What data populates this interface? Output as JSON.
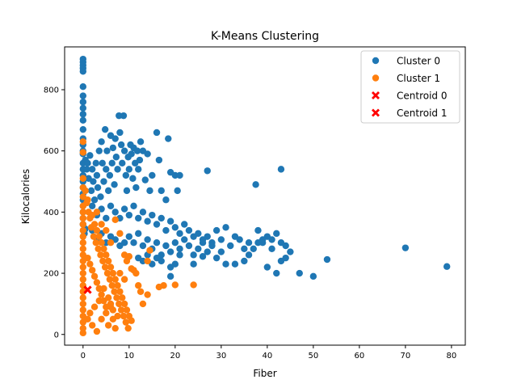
{
  "chart_data": {
    "type": "scatter",
    "title": "K-Means Clustering",
    "xlabel": "Fiber",
    "ylabel": "Kilocalories",
    "xlim": [
      -4,
      83
    ],
    "ylim": [
      -35,
      940
    ],
    "xticks": [
      0,
      10,
      20,
      30,
      40,
      50,
      60,
      70,
      80
    ],
    "yticks": [
      0,
      200,
      400,
      600,
      800
    ],
    "grid": false,
    "legend_position": "top-right",
    "series": [
      {
        "name": "Cluster 0",
        "color": "#1f77b4",
        "marker": "circle",
        "points": [
          [
            0,
            900
          ],
          [
            0,
            890
          ],
          [
            0,
            880
          ],
          [
            0,
            870
          ],
          [
            0,
            860
          ],
          [
            0,
            810
          ],
          [
            0,
            780
          ],
          [
            0,
            760
          ],
          [
            0,
            740
          ],
          [
            0,
            720
          ],
          [
            0,
            700
          ],
          [
            0,
            670
          ],
          [
            0,
            640
          ],
          [
            0,
            620
          ],
          [
            0,
            600
          ],
          [
            0,
            590
          ],
          [
            0,
            560
          ],
          [
            0,
            540
          ],
          [
            0,
            520
          ],
          [
            0,
            500
          ],
          [
            0,
            480
          ],
          [
            0,
            460
          ],
          [
            0,
            440
          ],
          [
            0,
            420
          ],
          [
            0,
            400
          ],
          [
            0,
            380
          ],
          [
            0,
            360
          ],
          [
            0.3,
            330
          ],
          [
            0.5,
            345
          ],
          [
            0.5,
            570
          ],
          [
            0.8,
            540
          ],
          [
            1,
            560
          ],
          [
            1.2,
            510
          ],
          [
            1.5,
            585
          ],
          [
            1.8,
            470
          ],
          [
            2,
            540
          ],
          [
            2.2,
            500
          ],
          [
            2.5,
            440
          ],
          [
            2.8,
            560
          ],
          [
            3,
            520
          ],
          [
            3.2,
            480
          ],
          [
            3.5,
            600
          ],
          [
            3.8,
            450
          ],
          [
            4,
            630
          ],
          [
            4.2,
            560
          ],
          [
            4.5,
            500
          ],
          [
            4.8,
            670
          ],
          [
            5,
            540
          ],
          [
            5.2,
            600
          ],
          [
            5.5,
            470
          ],
          [
            5.8,
            520
          ],
          [
            6,
            650
          ],
          [
            6.3,
            560
          ],
          [
            6.5,
            610
          ],
          [
            6.8,
            490
          ],
          [
            7,
            640
          ],
          [
            7.2,
            580
          ],
          [
            7.5,
            540
          ],
          [
            7.8,
            715
          ],
          [
            8,
            660
          ],
          [
            8.3,
            620
          ],
          [
            8.5,
            560
          ],
          [
            8.8,
            715
          ],
          [
            9,
            600
          ],
          [
            9.3,
            520
          ],
          [
            9.5,
            470
          ],
          [
            9.8,
            580
          ],
          [
            10,
            540
          ],
          [
            10.3,
            620
          ],
          [
            10.5,
            590
          ],
          [
            10.8,
            510
          ],
          [
            11,
            610
          ],
          [
            11.3,
            560
          ],
          [
            11.5,
            480
          ],
          [
            11.8,
            600
          ],
          [
            12,
            540
          ],
          [
            12.3,
            570
          ],
          [
            12.5,
            630
          ],
          [
            13,
            600
          ],
          [
            13.5,
            505
          ],
          [
            14,
            590
          ],
          [
            14.5,
            470
          ],
          [
            15,
            520
          ],
          [
            16,
            660
          ],
          [
            16.5,
            570
          ],
          [
            17,
            470
          ],
          [
            18,
            440
          ],
          [
            18.5,
            640
          ],
          [
            19,
            530
          ],
          [
            20,
            520
          ],
          [
            20.5,
            470
          ],
          [
            21,
            520
          ],
          [
            27,
            535
          ],
          [
            37.5,
            490
          ],
          [
            43,
            540
          ],
          [
            2,
            420
          ],
          [
            3,
            390
          ],
          [
            4,
            410
          ],
          [
            5,
            380
          ],
          [
            6,
            420
          ],
          [
            7,
            400
          ],
          [
            8,
            380
          ],
          [
            9,
            410
          ],
          [
            10,
            390
          ],
          [
            11,
            420
          ],
          [
            12,
            380
          ],
          [
            13,
            400
          ],
          [
            14,
            370
          ],
          [
            15,
            390
          ],
          [
            16,
            360
          ],
          [
            17,
            380
          ],
          [
            18,
            340
          ],
          [
            19,
            370
          ],
          [
            20,
            350
          ],
          [
            21,
            330
          ],
          [
            22,
            360
          ],
          [
            23,
            340
          ],
          [
            24,
            320
          ],
          [
            25,
            330
          ],
          [
            26,
            310
          ],
          [
            27,
            320
          ],
          [
            28,
            300
          ],
          [
            29,
            340
          ],
          [
            30,
            310
          ],
          [
            31,
            350
          ],
          [
            32,
            290
          ],
          [
            33,
            320
          ],
          [
            34,
            310
          ],
          [
            35,
            280
          ],
          [
            36,
            300
          ],
          [
            37,
            280
          ],
          [
            38,
            340
          ],
          [
            39,
            300
          ],
          [
            40,
            320
          ],
          [
            41,
            310
          ],
          [
            42,
            330
          ],
          [
            43,
            300
          ],
          [
            44,
            290
          ],
          [
            45,
            270
          ],
          [
            10,
            320
          ],
          [
            11,
            300
          ],
          [
            12,
            330
          ],
          [
            13,
            290
          ],
          [
            14,
            310
          ],
          [
            15,
            280
          ],
          [
            16,
            300
          ],
          [
            17,
            260
          ],
          [
            18,
            290
          ],
          [
            19,
            270
          ],
          [
            20,
            300
          ],
          [
            21,
            280
          ],
          [
            22,
            310
          ],
          [
            23,
            290
          ],
          [
            24,
            260
          ],
          [
            25,
            280
          ],
          [
            26,
            300
          ],
          [
            27,
            270
          ],
          [
            28,
            290
          ],
          [
            29,
            250
          ],
          [
            30,
            270
          ],
          [
            31,
            230
          ],
          [
            33,
            230
          ],
          [
            36,
            260
          ],
          [
            40,
            220
          ],
          [
            42,
            200
          ],
          [
            43,
            240
          ],
          [
            44,
            250
          ],
          [
            47,
            200
          ],
          [
            50,
            190
          ],
          [
            53,
            245
          ],
          [
            70,
            283
          ],
          [
            79,
            222
          ],
          [
            12,
            250
          ],
          [
            13,
            240
          ],
          [
            14,
            260
          ],
          [
            15,
            230
          ],
          [
            16,
            250
          ],
          [
            17,
            240
          ],
          [
            19,
            190
          ],
          [
            19,
            220
          ],
          [
            20,
            230
          ],
          [
            21,
            260
          ],
          [
            24,
            230
          ],
          [
            26,
            255
          ],
          [
            35,
            240
          ],
          [
            38,
            300
          ],
          [
            39,
            310
          ],
          [
            41,
            280
          ],
          [
            9,
            300
          ],
          [
            8,
            290
          ],
          [
            7,
            310
          ],
          [
            6,
            320
          ],
          [
            5,
            300
          ],
          [
            4,
            330
          ],
          [
            3,
            310
          ],
          [
            2,
            340
          ]
        ]
      },
      {
        "name": "Cluster 1",
        "color": "#ff7f0e",
        "marker": "circle",
        "points": [
          [
            0,
            630
          ],
          [
            0,
            595
          ],
          [
            0,
            510
          ],
          [
            0,
            480
          ],
          [
            0,
            450
          ],
          [
            0,
            420
          ],
          [
            0,
            400
          ],
          [
            0,
            380
          ],
          [
            0,
            360
          ],
          [
            0,
            340
          ],
          [
            0,
            320
          ],
          [
            0,
            300
          ],
          [
            0,
            280
          ],
          [
            0,
            260
          ],
          [
            0,
            240
          ],
          [
            0,
            220
          ],
          [
            0,
            200
          ],
          [
            0,
            180
          ],
          [
            0,
            160
          ],
          [
            0,
            140
          ],
          [
            0,
            120
          ],
          [
            0,
            100
          ],
          [
            0,
            80
          ],
          [
            0,
            60
          ],
          [
            0,
            40
          ],
          [
            0,
            20
          ],
          [
            0,
            5
          ],
          [
            0.5,
            470
          ],
          [
            0.8,
            430
          ],
          [
            1,
            440
          ],
          [
            1.2,
            400
          ],
          [
            1.5,
            380
          ],
          [
            1.8,
            350
          ],
          [
            2,
            390
          ],
          [
            2.3,
            320
          ],
          [
            2.5,
            360
          ],
          [
            2.8,
            300
          ],
          [
            3,
            340
          ],
          [
            3.3,
            280
          ],
          [
            3.5,
            320
          ],
          [
            3.8,
            260
          ],
          [
            4,
            300
          ],
          [
            4.3,
            240
          ],
          [
            4.5,
            280
          ],
          [
            4.8,
            220
          ],
          [
            5,
            260
          ],
          [
            5.3,
            200
          ],
          [
            5.5,
            240
          ],
          [
            5.8,
            180
          ],
          [
            6,
            220
          ],
          [
            6.3,
            160
          ],
          [
            6.5,
            200
          ],
          [
            6.8,
            140
          ],
          [
            7,
            180
          ],
          [
            7.3,
            120
          ],
          [
            7.5,
            160
          ],
          [
            7.8,
            100
          ],
          [
            8,
            140
          ],
          [
            8.3,
            80
          ],
          [
            8.5,
            120
          ],
          [
            8.8,
            60
          ],
          [
            9,
            100
          ],
          [
            9.3,
            40
          ],
          [
            9.5,
            80
          ],
          [
            9.8,
            20
          ],
          [
            10,
            60
          ],
          [
            10.5,
            45
          ],
          [
            11,
            210
          ],
          [
            11.5,
            200
          ],
          [
            12,
            160
          ],
          [
            12.5,
            140
          ],
          [
            13,
            100
          ],
          [
            14,
            130
          ],
          [
            14,
            240
          ],
          [
            14.5,
            275
          ],
          [
            16.5,
            155
          ],
          [
            17.5,
            160
          ],
          [
            20,
            162
          ],
          [
            24,
            162
          ],
          [
            1,
            50
          ],
          [
            1.5,
            70
          ],
          [
            2,
            30
          ],
          [
            2.5,
            90
          ],
          [
            3,
            10
          ],
          [
            3.5,
            110
          ],
          [
            4,
            50
          ],
          [
            4.5,
            150
          ],
          [
            5,
            70
          ],
          [
            5.5,
            30
          ],
          [
            6,
            90
          ],
          [
            6.5,
            50
          ],
          [
            7,
            20
          ],
          [
            7.5,
            60
          ],
          [
            1,
            250
          ],
          [
            1.5,
            230
          ],
          [
            2,
            210
          ],
          [
            2.5,
            190
          ],
          [
            3,
            170
          ],
          [
            3.5,
            150
          ],
          [
            4,
            130
          ],
          [
            4.5,
            110
          ],
          [
            5,
            90
          ],
          [
            5.5,
            120
          ],
          [
            6,
            100
          ],
          [
            6.5,
            80
          ],
          [
            7,
            375
          ],
          [
            8,
            330
          ],
          [
            9,
            260
          ],
          [
            9.5,
            240
          ],
          [
            10,
            255
          ],
          [
            10.5,
            215
          ],
          [
            3,
            400
          ],
          [
            4,
            360
          ],
          [
            5,
            340
          ],
          [
            6,
            300
          ],
          [
            8,
            200
          ],
          [
            9,
            180
          ]
        ]
      },
      {
        "name": "Centroid 0",
        "color": "#ff0000",
        "marker": "x",
        "points": [
          [
            1.0,
            146
          ]
        ]
      },
      {
        "name": "Centroid 1",
        "color": "#ff0000",
        "marker": "x",
        "points": [
          [
            1.0,
            146
          ]
        ]
      }
    ]
  }
}
